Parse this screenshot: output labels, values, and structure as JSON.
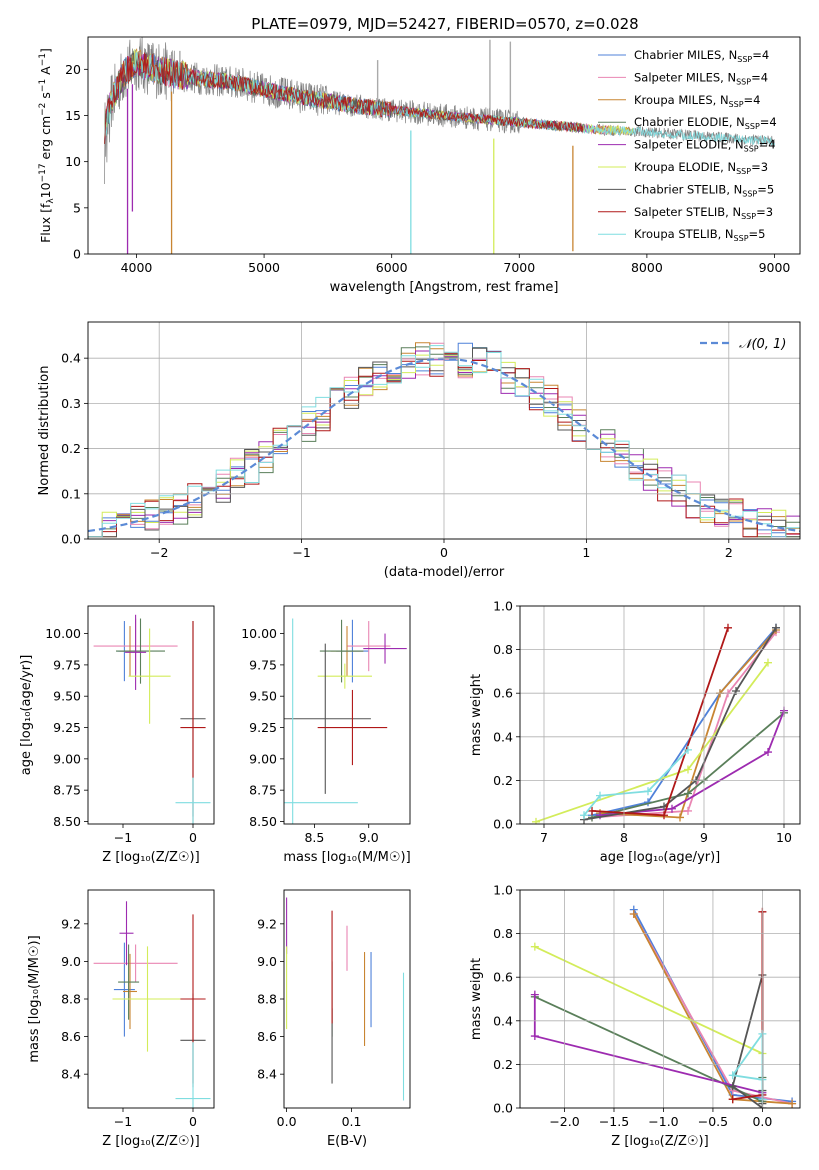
{
  "title": "PLATE=0979, MJD=52427, FIBERID=0570, z=0.028",
  "models": [
    {
      "name": "Chabrier MILES, N",
      "nssp": "4",
      "color": "#4f81d9"
    },
    {
      "name": "Salpeter MILES, N",
      "nssp": "4",
      "color": "#e986b3"
    },
    {
      "name": "Kroupa MILES, N",
      "nssp": "4",
      "color": "#c88532"
    },
    {
      "name": "Chabrier ELODIE, N",
      "nssp": "4",
      "color": "#5a7f5a"
    },
    {
      "name": "Salpeter ELODIE, N",
      "nssp": "4",
      "color": "#9d2bb0"
    },
    {
      "name": "Kroupa ELODIE, N",
      "nssp": "3",
      "color": "#d3ec5a"
    },
    {
      "name": "Chabrier STELIB, N",
      "nssp": "5",
      "color": "#555555"
    },
    {
      "name": "Salpeter STELIB, N",
      "nssp": "3",
      "color": "#b01818"
    },
    {
      "name": "Kroupa STELIB, N",
      "nssp": "5",
      "color": "#7fdde0"
    }
  ],
  "chart_data": [
    {
      "id": "spectrum",
      "type": "line",
      "xlabel": "wavelength [Angstrom, rest frame]",
      "ylabel_main": "Flux [f",
      "ylabel_sub": "λ",
      "ylabel_rest": "10",
      "ylabel_exp1": "−17",
      "ylabel_unit": " erg cm",
      "ylabel_exp2": "−2",
      "ylabel_s": " s",
      "ylabel_exp3": "−1",
      "ylabel_A": " A",
      "ylabel_exp4": "−1",
      "ylabel_end": "]",
      "xlim": [
        3620,
        9200
      ],
      "ylim": [
        0,
        23.5
      ],
      "xticks": [
        "4000",
        "5000",
        "6000",
        "7000",
        "8000",
        "9000"
      ],
      "yticks": [
        "0",
        "5",
        "10",
        "15",
        "20"
      ],
      "continuum": {
        "x": [
          3750,
          3800,
          3900,
          4000,
          4100,
          4300,
          4500,
          4800,
          5000,
          5300,
          5600,
          6000,
          6400,
          6800,
          7200,
          7600,
          8000,
          8400,
          8800,
          9000
        ],
        "y": [
          13.5,
          16.5,
          19.5,
          20.8,
          20.2,
          19.5,
          19.0,
          18.5,
          17.8,
          17.0,
          16.3,
          15.6,
          15.0,
          14.5,
          14.0,
          13.5,
          13.2,
          12.8,
          12.4,
          12.2
        ]
      },
      "data_xrange": [
        3750,
        9000
      ],
      "model_xrange": [
        3750,
        7500
      ],
      "dips": [
        {
          "x": 3930,
          "model": 4,
          "y": 0
        },
        {
          "x": 3968,
          "model": 4,
          "y": 4.6
        },
        {
          "x": 4275,
          "model": 2,
          "y": 0
        },
        {
          "x": 6150,
          "model": 8,
          "y": 0
        },
        {
          "x": 6800,
          "model": 5,
          "y": 0
        },
        {
          "x": 7420,
          "model": 2,
          "y": 0.3
        }
      ],
      "data_spikes": [
        {
          "x": 6770,
          "y": 23.2
        },
        {
          "x": 6930,
          "y": 23.0
        },
        {
          "x": 5890,
          "y": 21.0
        },
        {
          "x": 4340,
          "y": 22.0
        }
      ]
    },
    {
      "id": "residuals",
      "type": "histogram",
      "xlabel": "(data-model)/error",
      "ylabel": "Normed distribution",
      "legend": "𝒩(0, 1)",
      "xlim": [
        -2.5,
        2.5
      ],
      "ylim": [
        0,
        0.48
      ],
      "xticks": [
        "−2",
        "−1",
        "0",
        "1",
        "2"
      ],
      "yticks": [
        "0.0",
        "0.1",
        "0.2",
        "0.3",
        "0.4"
      ],
      "bin_width": 0.1,
      "grid": true
    },
    {
      "id": "age-vs-z",
      "type": "scatter",
      "xlabel": "Z [log₁₀(Z/Z☉)]",
      "ylabel": "age  [log₁₀(age/yr)]",
      "xlim": [
        -1.5,
        0.3
      ],
      "ylim": [
        8.48,
        10.22
      ],
      "xticks": [
        "−1",
        "0"
      ],
      "yticks": [
        "8.50",
        "8.75",
        "9.00",
        "9.25",
        "9.50",
        "9.75",
        "10.00"
      ],
      "points": [
        {
          "model": 0,
          "x": -0.98,
          "y": 9.86,
          "xerr": 0.1,
          "yerr": 0.24
        },
        {
          "model": 1,
          "x": -0.82,
          "y": 9.9,
          "xerr": 0.6,
          "yerr": 0.22
        },
        {
          "model": 2,
          "x": -0.9,
          "y": 9.86,
          "xerr": 0.15,
          "yerr": 0.2
        },
        {
          "model": 3,
          "x": -0.75,
          "y": 9.86,
          "xerr": 0.35,
          "yerr": 0.26
        },
        {
          "model": 4,
          "x": -0.82,
          "y": 9.85,
          "xerr": 0.15,
          "yerr": 0.3
        },
        {
          "model": 5,
          "x": -0.62,
          "y": 9.66,
          "xerr": 0.3,
          "yerr": 0.38
        },
        {
          "model": 6,
          "x": 0.0,
          "y": 9.32,
          "xerr": 0.18,
          "yerr": 0.78
        },
        {
          "model": 7,
          "x": 0.0,
          "y": 9.25,
          "xerr": 0.18,
          "yerr": 0.85
        },
        {
          "model": 8,
          "x": 0.0,
          "y": 8.65,
          "xerr": 0.25,
          "yerr": 0.2
        }
      ]
    },
    {
      "id": "age-vs-mass",
      "type": "scatter",
      "xlabel": "mass [log₁₀(M/M☉)]",
      "ylabel": "",
      "xlim": [
        8.22,
        9.38
      ],
      "ylim": [
        8.48,
        10.22
      ],
      "xticks": [
        "8.5",
        "9.0"
      ],
      "yticks": [
        "8.50",
        "8.75",
        "9.00",
        "9.25",
        "9.50",
        "9.75",
        "10.00"
      ],
      "points": [
        {
          "model": 0,
          "x": 8.85,
          "y": 9.86,
          "xerr": 0.15,
          "yerr": 0.25
        },
        {
          "model": 1,
          "x": 9.0,
          "y": 9.9,
          "xerr": 0.2,
          "yerr": 0.2
        },
        {
          "model": 2,
          "x": 8.8,
          "y": 9.86,
          "xerr": 0.15,
          "yerr": 0.2
        },
        {
          "model": 3,
          "x": 8.75,
          "y": 9.86,
          "xerr": 0.2,
          "yerr": 0.25
        },
        {
          "model": 4,
          "x": 9.15,
          "y": 9.88,
          "xerr": 0.2,
          "yerr": 0.12
        },
        {
          "model": 5,
          "x": 8.78,
          "y": 9.66,
          "xerr": 0.25,
          "yerr": 0.1
        },
        {
          "model": 6,
          "x": 8.6,
          "y": 9.32,
          "xerr": 0.42,
          "yerr": 0.6
        },
        {
          "model": 7,
          "x": 8.85,
          "y": 9.25,
          "xerr": 0.32,
          "yerr": 0.3
        },
        {
          "model": 8,
          "x": 8.3,
          "y": 8.65,
          "xerr": 0.6,
          "yerr": 1.47
        }
      ]
    },
    {
      "id": "mass-weight-vs-age",
      "type": "line",
      "xlabel": "age  [log₁₀(age/yr)]",
      "ylabel": "mass weight",
      "xlim": [
        6.7,
        10.2
      ],
      "ylim": [
        0,
        1.0
      ],
      "xticks": [
        "7",
        "8",
        "9",
        "10"
      ],
      "yticks": [
        "0.0",
        "0.2",
        "0.4",
        "0.6",
        "0.8",
        "1.0"
      ],
      "grid": true,
      "series": [
        {
          "model": 0,
          "x": [
            7.6,
            8.3,
            9.2,
            9.9
          ],
          "y": [
            0.04,
            0.1,
            0.6,
            0.9
          ]
        },
        {
          "model": 1,
          "x": [
            7.6,
            8.8,
            9.3,
            9.9
          ],
          "y": [
            0.03,
            0.06,
            0.6,
            0.88
          ]
        },
        {
          "model": 2,
          "x": [
            7.7,
            8.7,
            9.2,
            9.9
          ],
          "y": [
            0.05,
            0.03,
            0.6,
            0.89
          ]
        },
        {
          "model": 3,
          "x": [
            7.6,
            8.8,
            9.0,
            10.0
          ],
          "y": [
            0.03,
            0.14,
            0.2,
            0.51
          ]
        },
        {
          "model": 4,
          "x": [
            7.7,
            8.6,
            9.8,
            10.0
          ],
          "y": [
            0.04,
            0.07,
            0.33,
            0.52
          ]
        },
        {
          "model": 5,
          "x": [
            6.9,
            8.8,
            9.8
          ],
          "y": [
            0.01,
            0.25,
            0.74
          ]
        },
        {
          "model": 6,
          "x": [
            7.5,
            8.5,
            8.9,
            9.4,
            9.9
          ],
          "y": [
            0.02,
            0.08,
            0.2,
            0.61,
            0.9
          ]
        },
        {
          "model": 7,
          "x": [
            7.6,
            8.5,
            9.3
          ],
          "y": [
            0.06,
            0.04,
            0.9
          ]
        },
        {
          "model": 8,
          "x": [
            7.5,
            7.7,
            8.3,
            8.8
          ],
          "y": [
            0.04,
            0.13,
            0.15,
            0.34
          ]
        }
      ]
    },
    {
      "id": "mass-vs-z",
      "type": "scatter",
      "xlabel": "Z [log₁₀(Z/Z☉)]",
      "ylabel": "mass [log₁₀(M/M☉)]",
      "xlim": [
        -1.5,
        0.3
      ],
      "ylim": [
        8.22,
        9.38
      ],
      "xticks": [
        "−1",
        "0"
      ],
      "yticks": [
        "8.4",
        "8.6",
        "8.8",
        "9.0",
        "9.2"
      ],
      "points": [
        {
          "model": 0,
          "x": -0.98,
          "y": 8.85,
          "xerr": 0.15,
          "yerr": 0.25
        },
        {
          "model": 1,
          "x": -0.82,
          "y": 8.99,
          "xerr": 0.6,
          "yerr": 0.1
        },
        {
          "model": 2,
          "x": -0.9,
          "y": 8.84,
          "xerr": 0.1,
          "yerr": 0.2
        },
        {
          "model": 3,
          "x": -0.92,
          "y": 8.89,
          "xerr": 0.15,
          "yerr": 0.2
        },
        {
          "model": 4,
          "x": -0.95,
          "y": 9.15,
          "xerr": 0.1,
          "yerr": 0.17
        },
        {
          "model": 5,
          "x": -0.65,
          "y": 8.8,
          "xerr": 0.5,
          "yerr": 0.28
        },
        {
          "model": 6,
          "x": 0.0,
          "y": 8.58,
          "xerr": 0.18,
          "yerr": 0.25
        },
        {
          "model": 7,
          "x": 0.0,
          "y": 8.8,
          "xerr": 0.18,
          "yerr": 0.45
        },
        {
          "model": 8,
          "x": 0.0,
          "y": 8.27,
          "xerr": 0.25,
          "yerr": 0.3
        }
      ]
    },
    {
      "id": "mass-vs-ebv",
      "type": "scatter",
      "xlabel": "E(B-V)",
      "ylabel": "",
      "xlim": [
        -0.004,
        0.19
      ],
      "ylim": [
        8.22,
        9.38
      ],
      "xticks": [
        "0.0",
        "0.1"
      ],
      "yticks": [
        "8.4",
        "8.6",
        "8.8",
        "9.0",
        "9.2"
      ],
      "points": [
        {
          "model": 0,
          "x": 0.13,
          "y": 8.85,
          "yerr": 0.2
        },
        {
          "model": 1,
          "x": 0.093,
          "y": 9.07,
          "yerr": 0.12
        },
        {
          "model": 2,
          "x": 0.12,
          "y": 8.8,
          "yerr": 0.25
        },
        {
          "model": 3,
          "x": 0.07,
          "y": 8.8,
          "yerr": 0.2
        },
        {
          "model": 4,
          "x": 0.0,
          "y": 9.19,
          "yerr": 0.15
        },
        {
          "model": 5,
          "x": 0.0,
          "y": 8.86,
          "yerr": 0.22
        },
        {
          "model": 6,
          "x": 0.07,
          "y": 8.55,
          "yerr": 0.2
        },
        {
          "model": 7,
          "x": 0.07,
          "y": 8.97,
          "yerr": 0.3
        },
        {
          "model": 8,
          "x": 0.18,
          "y": 8.6,
          "yerr": 0.34
        }
      ]
    },
    {
      "id": "mass-weight-vs-z",
      "type": "line",
      "xlabel": "Z [log₁₀(Z/Z☉)]",
      "ylabel": "mass weight",
      "xlim": [
        -2.45,
        0.38
      ],
      "ylim": [
        0,
        1.0
      ],
      "xticks": [
        "−2.0",
        "−1.5",
        "−1.0",
        "−0.5",
        "0.0"
      ],
      "yticks": [
        "0.0",
        "0.2",
        "0.4",
        "0.6",
        "0.8",
        "1.0"
      ],
      "grid": true,
      "series": [
        {
          "model": 0,
          "x": [
            -1.3,
            -0.3,
            0.3
          ],
          "y": [
            0.91,
            0.06,
            0.03
          ]
        },
        {
          "model": 1,
          "x": [
            -1.3,
            -0.3,
            0.3
          ],
          "y": [
            0.89,
            0.08,
            0.02
          ]
        },
        {
          "model": 2,
          "x": [
            -1.3,
            -0.3,
            0.3
          ],
          "y": [
            0.89,
            0.04,
            0.02
          ]
        },
        {
          "model": 3,
          "x": [
            -2.3,
            0.0,
            0.0
          ],
          "y": [
            0.51,
            0.03,
            0.14
          ]
        },
        {
          "model": 4,
          "x": [
            -2.3,
            -2.3,
            0.0
          ],
          "y": [
            0.52,
            0.33,
            0.07
          ]
        },
        {
          "model": 5,
          "x": [
            -2.3,
            0.0
          ],
          "y": [
            0.74,
            0.25
          ]
        },
        {
          "model": 6,
          "x": [
            0.0,
            0.0,
            0.0,
            -0.3,
            0.0
          ],
          "y": [
            0.02,
            0.08,
            0.61,
            0.1,
            0.0
          ]
        },
        {
          "model": 7,
          "x": [
            0.0,
            0.0,
            -0.3
          ],
          "y": [
            0.9,
            0.06,
            0.04
          ]
        },
        {
          "model": 8,
          "x": [
            0.0,
            0.0,
            -0.3,
            0.0
          ],
          "y": [
            0.04,
            0.34,
            0.15,
            0.13
          ]
        }
      ]
    }
  ]
}
